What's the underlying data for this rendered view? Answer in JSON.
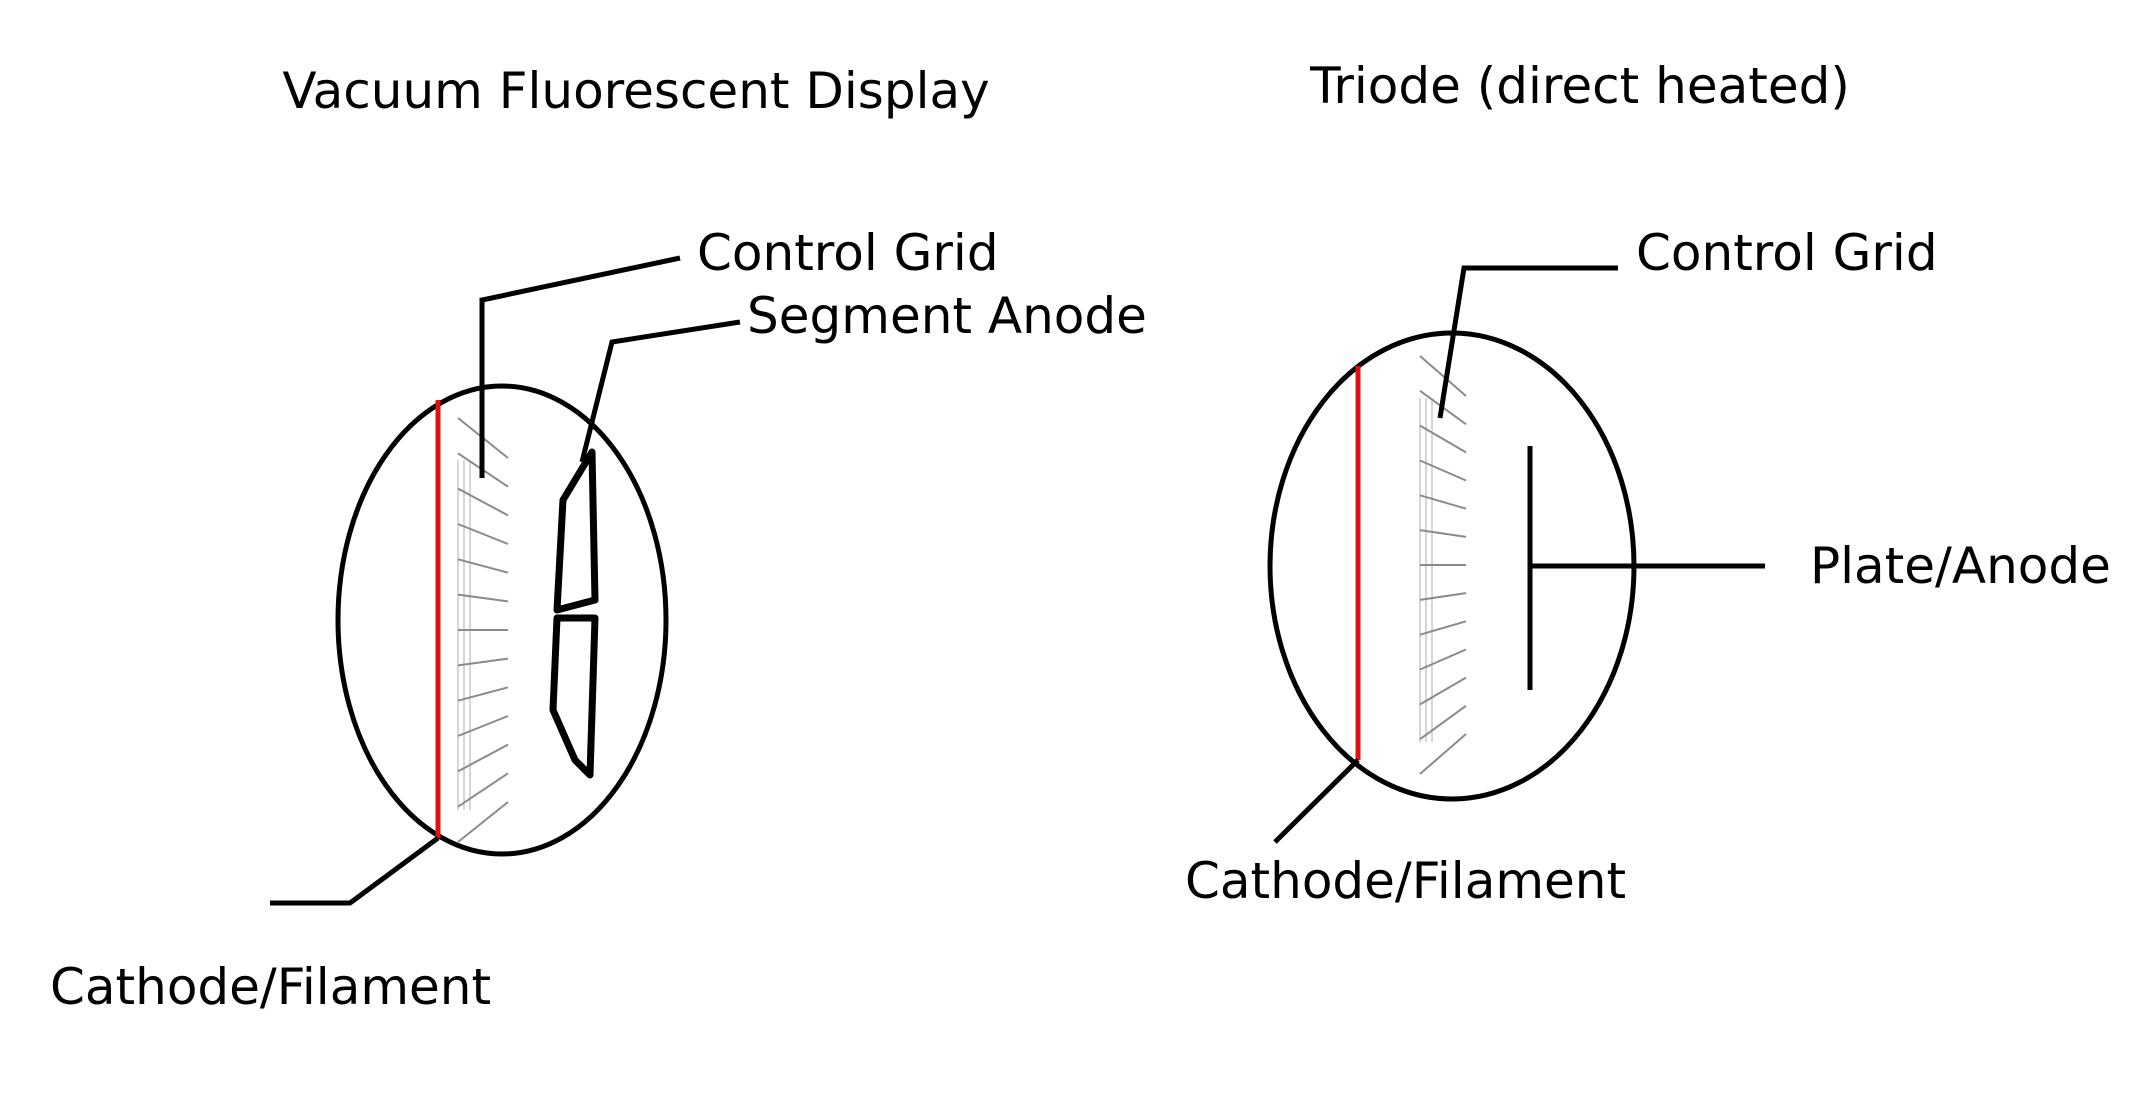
{
  "vfd": {
    "title": "Vacuum Fluorescent Display",
    "labels": {
      "control_grid": "Control Grid",
      "segment_anode": "Segment Anode",
      "cathode": "Cathode/Filament"
    }
  },
  "triode": {
    "title": "Triode (direct heated)",
    "labels": {
      "control_grid": "Control Grid",
      "plate_anode": "Plate/Anode",
      "cathode": "Cathode/Filament"
    }
  },
  "colors": {
    "outline": "#000000",
    "filament": "#e01010",
    "grid_lines": "#8a8a8a"
  }
}
